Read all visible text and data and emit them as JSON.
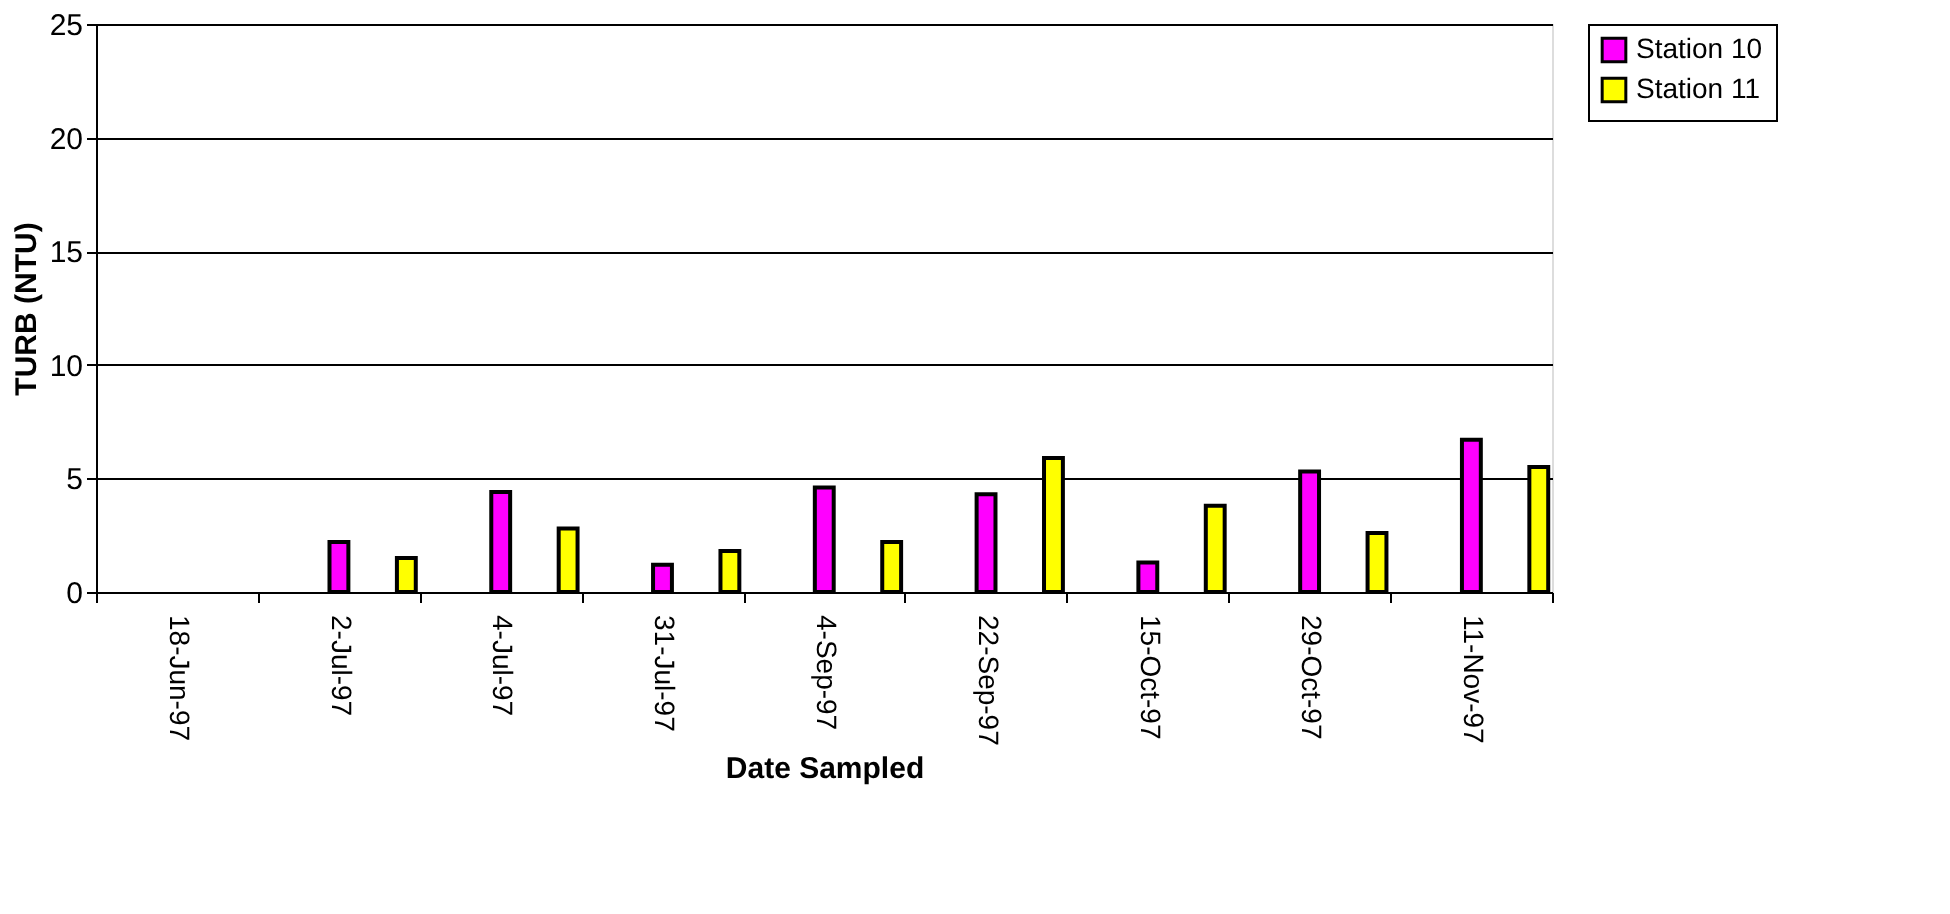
{
  "chart_data": {
    "type": "bar",
    "xlabel": "Date Sampled",
    "ylabel": "TURB (NTU)",
    "categories": [
      "18-Jun-97",
      "2-Jul-97",
      "4-Jul-97",
      "31-Jul-97",
      "4-Sep-97",
      "22-Sep-97",
      "15-Oct-97",
      "29-Oct-97",
      "11-Nov-97"
    ],
    "series": [
      {
        "name": "Station 10",
        "color": "#ff00ff",
        "values": [
          null,
          2.2,
          4.4,
          1.2,
          4.6,
          4.3,
          1.3,
          5.3,
          6.7
        ]
      },
      {
        "name": "Station 11",
        "color": "#ffff00",
        "values": [
          null,
          1.5,
          2.8,
          1.8,
          2.2,
          5.9,
          3.8,
          2.6,
          5.5
        ]
      }
    ],
    "ylim": [
      0,
      25
    ],
    "yticks": [
      0,
      5,
      10,
      15,
      20,
      25
    ],
    "grid": "y",
    "legend": "right"
  }
}
